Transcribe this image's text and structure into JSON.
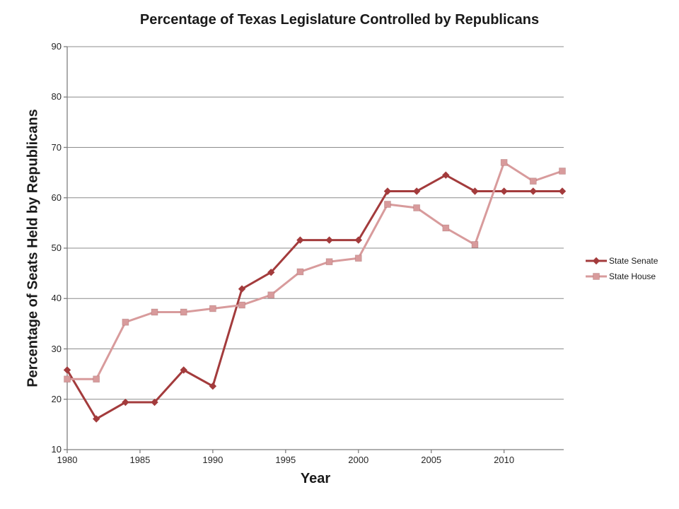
{
  "chart_data": {
    "type": "line",
    "title": "Percentage of Texas Legislature Controlled by Republicans",
    "xlabel": "Year",
    "ylabel": "Percentage of Seats Held by Republicans",
    "x": [
      1980,
      1982,
      1984,
      1986,
      1988,
      1990,
      1992,
      1994,
      1996,
      1998,
      2000,
      2002,
      2004,
      2006,
      2008,
      2010,
      2012,
      2014
    ],
    "series": [
      {
        "name": "State Senate",
        "marker": "diamond",
        "color": "#A33B3C",
        "values": [
          25.8,
          16.1,
          19.4,
          19.4,
          25.8,
          22.6,
          41.9,
          45.2,
          51.6,
          51.6,
          51.6,
          61.3,
          61.3,
          64.5,
          61.3,
          61.3,
          61.3,
          61.3
        ]
      },
      {
        "name": "State House",
        "marker": "square",
        "color": "#D89B9C",
        "values": [
          24.0,
          24.0,
          35.3,
          37.3,
          37.3,
          38.0,
          38.7,
          40.7,
          45.3,
          47.3,
          48.0,
          58.7,
          58.0,
          54.0,
          50.7,
          67.0,
          63.3,
          65.3
        ]
      }
    ],
    "xticks": [
      1980,
      1985,
      1990,
      1995,
      2000,
      2005,
      2010
    ],
    "yticks": [
      10,
      20,
      30,
      40,
      50,
      60,
      70,
      80,
      90
    ],
    "xlim": [
      1980,
      2014
    ],
    "ylim": [
      10,
      90
    ],
    "grid": "horizontal",
    "legend_position": "right",
    "colors": {
      "background": "#FFFFFF",
      "gridline": "#8C8C8C",
      "axis": "#7F7F7F",
      "tick_text": "#262626",
      "title_text": "#1A1A1A"
    }
  }
}
